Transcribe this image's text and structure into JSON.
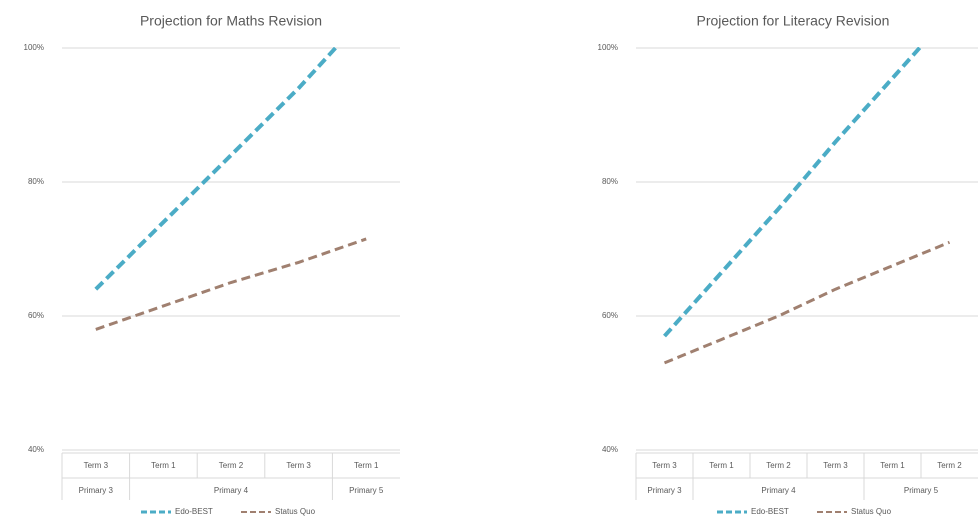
{
  "chart_data": [
    {
      "type": "line",
      "title": "Projection for Maths Revision",
      "categories": [
        "Term 3",
        "Term 1",
        "Term 2",
        "Term 3",
        "Term 1"
      ],
      "x_groups": [
        "Primary 3",
        "Primary 4",
        "Primary 4",
        "Primary 4",
        "Primary 5"
      ],
      "series": [
        {
          "name": "Edo-BEST",
          "color": "#4bacc6",
          "values": [
            64,
            74,
            84,
            94,
            105
          ]
        },
        {
          "name": "Status Quo",
          "color": "#a08070",
          "values": [
            58,
            61.5,
            65,
            68,
            71.5
          ]
        }
      ],
      "ylim": [
        40,
        100
      ],
      "yticks": [
        {
          "value": 40,
          "label": "40%"
        },
        {
          "value": 60,
          "label": "60%"
        },
        {
          "value": 80,
          "label": "80%"
        },
        {
          "value": 100,
          "label": "100%"
        }
      ],
      "grid": true,
      "legend": "bottom"
    },
    {
      "type": "line",
      "title": "Projection for Literacy Revision",
      "categories": [
        "Term 3",
        "Term 1",
        "Term 2",
        "Term 3",
        "Term 1",
        "Term 2"
      ],
      "x_groups": [
        "Primary 3",
        "Primary 4",
        "Primary 4",
        "Primary 4",
        "Primary 5",
        "Primary 5"
      ],
      "series": [
        {
          "name": "Edo-BEST",
          "color": "#4bacc6",
          "values": [
            57,
            66.5,
            76,
            86,
            95.5,
            105
          ]
        },
        {
          "name": "Status Quo",
          "color": "#a08070",
          "values": [
            53,
            56.5,
            60,
            64,
            67.5,
            71
          ]
        }
      ],
      "ylim": [
        40,
        100
      ],
      "yticks": [
        {
          "value": 40,
          "label": "40%"
        },
        {
          "value": 60,
          "label": "60%"
        },
        {
          "value": 80,
          "label": "80%"
        },
        {
          "value": 100,
          "label": "100%"
        }
      ],
      "grid": true,
      "legend": "bottom"
    }
  ]
}
